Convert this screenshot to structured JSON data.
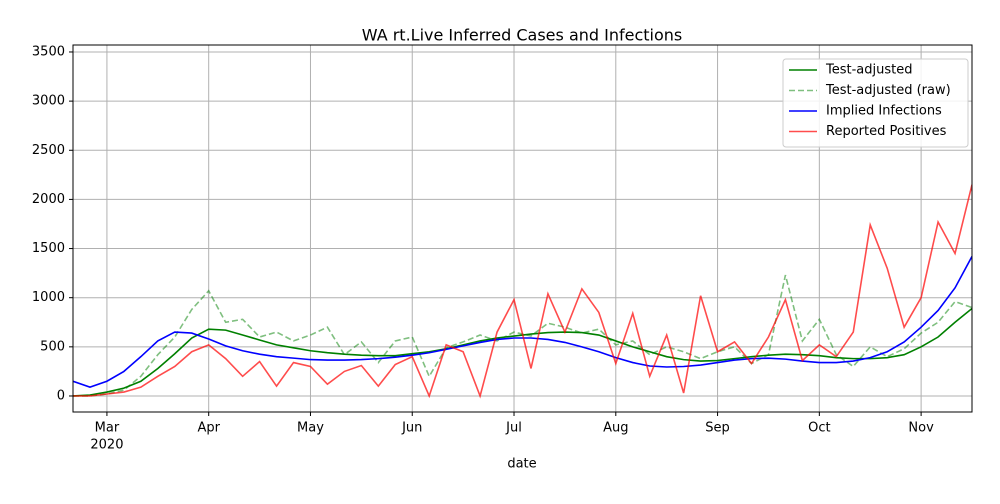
{
  "chart_data": {
    "type": "line",
    "title": "WA rt.Live Inferred Cases and Infections",
    "x_label": "date",
    "year_label": "2020",
    "categories": [
      null,
      null,
      "Mar",
      null,
      null,
      null,
      null,
      null,
      "Apr",
      null,
      null,
      null,
      null,
      null,
      "May",
      null,
      null,
      null,
      null,
      null,
      "Jun",
      null,
      null,
      null,
      null,
      null,
      "Jul",
      null,
      null,
      null,
      null,
      null,
      "Aug",
      null,
      null,
      null,
      null,
      null,
      "Sep",
      null,
      null,
      null,
      null,
      null,
      "Oct",
      null,
      null,
      null,
      null,
      null,
      "Nov",
      null,
      null,
      null
    ],
    "series": [
      {
        "name": "Test-adjusted",
        "color": "#008000",
        "dashed": false,
        "opacity": 1,
        "values": [
          0,
          10,
          40,
          80,
          150,
          280,
          430,
          590,
          680,
          670,
          620,
          570,
          520,
          490,
          460,
          440,
          425,
          415,
          410,
          410,
          430,
          450,
          480,
          520,
          560,
          590,
          610,
          630,
          645,
          650,
          645,
          620,
          560,
          500,
          450,
          400,
          370,
          355,
          360,
          380,
          400,
          415,
          425,
          420,
          410,
          390,
          380,
          380,
          390,
          420,
          500,
          600,
          750,
          890
        ]
      },
      {
        "name": "Test-adjusted (raw)",
        "color": "#008000",
        "dashed": true,
        "opacity": 0.5,
        "values": [
          0,
          0,
          20,
          60,
          200,
          420,
          600,
          880,
          1070,
          750,
          780,
          600,
          650,
          560,
          620,
          700,
          420,
          550,
          340,
          560,
          600,
          200,
          490,
          550,
          620,
          560,
          650,
          610,
          740,
          700,
          640,
          680,
          520,
          560,
          420,
          500,
          450,
          380,
          450,
          500,
          330,
          420,
          1230,
          560,
          780,
          420,
          300,
          500,
          400,
          480,
          640,
          750,
          960,
          900
        ]
      },
      {
        "name": "Implied Infections",
        "color": "#0000ff",
        "dashed": false,
        "opacity": 1,
        "values": [
          150,
          90,
          150,
          250,
          400,
          560,
          650,
          640,
          580,
          510,
          460,
          425,
          400,
          385,
          370,
          365,
          365,
          370,
          380,
          395,
          415,
          440,
          475,
          510,
          545,
          575,
          590,
          590,
          575,
          545,
          500,
          450,
          390,
          340,
          305,
          295,
          300,
          315,
          340,
          365,
          380,
          385,
          375,
          355,
          340,
          340,
          355,
          390,
          450,
          550,
          700,
          870,
          1100,
          1420
        ]
      },
      {
        "name": "Reported Positives",
        "color": "#ff0000",
        "dashed": false,
        "opacity": 0.7,
        "values": [
          0,
          0,
          20,
          40,
          90,
          200,
          300,
          450,
          520,
          380,
          200,
          350,
          100,
          340,
          300,
          120,
          250,
          310,
          100,
          320,
          400,
          0,
          520,
          450,
          0,
          650,
          980,
          280,
          1040,
          650,
          1090,
          850,
          330,
          840,
          200,
          620,
          30,
          1020,
          450,
          550,
          330,
          600,
          980,
          360,
          520,
          400,
          650,
          1740,
          1300,
          700,
          1000,
          1770,
          1450,
          2150
        ]
      }
    ],
    "ylim": [
      -163,
      3571
    ],
    "yticks": [
      0,
      500,
      1000,
      1500,
      2000,
      2500,
      3000,
      3500
    ],
    "grid": true,
    "legend": "upper right"
  }
}
